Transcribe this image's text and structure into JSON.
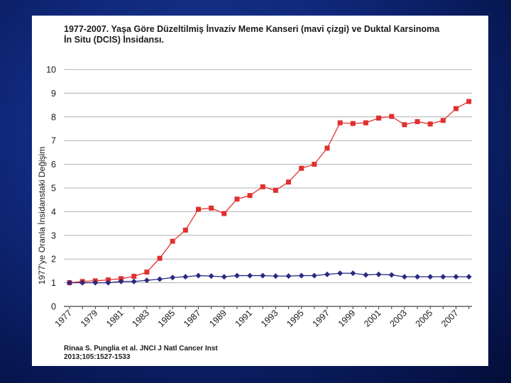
{
  "slide": {
    "title_line1": "1977-2007. Yaşa Göre Düzeltilmiş İnvaziv Meme Kanseri (mavi çizgi) ve Duktal Karsinoma",
    "title_line2": "İn Situ (DCIS) İnsidansı.",
    "citation_line1": "Rinaa S. Punglia et al. JNCI J Natl Cancer Inst",
    "citation_line2": "2013;105:1527-1533"
  },
  "chart_data": {
    "type": "line",
    "title": "1977-2007. Yaşa Göre Düzeltilmiş İnvaziv Meme Kanseri (mavi çizgi) ve Duktal Karsinoma İn Situ (DCIS) İnsidansı.",
    "xlabel": "",
    "ylabel": "1977'ye  Oranla  İnsidanstaki  Değişim",
    "x": [
      1977,
      1978,
      1979,
      1980,
      1981,
      1982,
      1983,
      1984,
      1985,
      1986,
      1987,
      1988,
      1989,
      1990,
      1991,
      1992,
      1993,
      1994,
      1995,
      1996,
      1997,
      1998,
      1999,
      2000,
      2001,
      2002,
      2003,
      2004,
      2005,
      2006,
      2007,
      2008
    ],
    "xticks": [
      "1977",
      "1979",
      "1981",
      "1983",
      "1985",
      "1987",
      "1989",
      "1991",
      "1993",
      "1995",
      "1997",
      "1999",
      "2001",
      "2003",
      "2005",
      "2007"
    ],
    "ylim": [
      0,
      10
    ],
    "yticks": [
      "0",
      "1",
      "2",
      "3",
      "4",
      "5",
      "6",
      "7",
      "8",
      "9",
      "10"
    ],
    "grid": true,
    "series": [
      {
        "color": "#e03030",
        "marker": "square",
        "values": [
          1.0,
          1.05,
          1.08,
          1.12,
          1.17,
          1.27,
          1.45,
          2.03,
          2.75,
          3.22,
          4.1,
          4.15,
          3.92,
          4.53,
          4.68,
          5.05,
          4.9,
          5.25,
          5.83,
          6.0,
          6.68,
          7.75,
          7.72,
          7.75,
          7.95,
          8.02,
          7.67,
          7.8,
          7.7,
          7.85,
          8.35,
          8.65
        ]
      },
      {
        "color": "#2a2a80",
        "marker": "diamond",
        "values": [
          1.0,
          1.0,
          1.0,
          1.0,
          1.05,
          1.05,
          1.1,
          1.15,
          1.22,
          1.25,
          1.3,
          1.28,
          1.25,
          1.3,
          1.3,
          1.3,
          1.28,
          1.28,
          1.3,
          1.3,
          1.35,
          1.4,
          1.4,
          1.33,
          1.35,
          1.33,
          1.25,
          1.25,
          1.25,
          1.25,
          1.25,
          1.25
        ]
      }
    ]
  }
}
